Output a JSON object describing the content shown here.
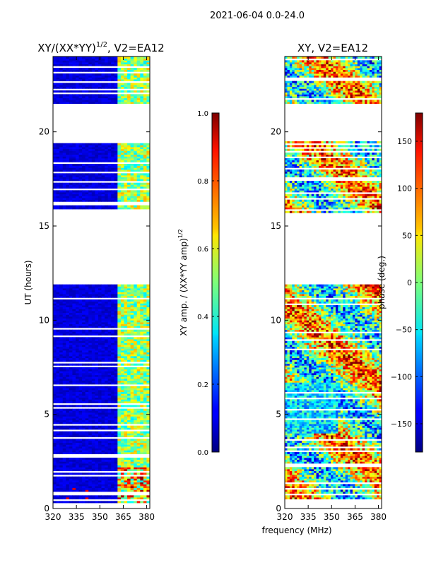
{
  "figure_title": "2021-06-04 0.0-24.0",
  "chart_data": [
    {
      "type": "heatmap",
      "title_main": "XY/(XX*YY)",
      "title_sup": "1/2",
      "title_suffix": ", V2=EA12",
      "xlabel": "",
      "ylabel": "UT (hours)",
      "xlim": [
        320,
        382
      ],
      "ylim": [
        0,
        24
      ],
      "xticks": [
        320,
        335,
        350,
        365,
        380
      ],
      "yticks": [
        0,
        5,
        10,
        15,
        20
      ],
      "data_bands_hours": [
        [
          0.3,
          12.0
        ],
        [
          15.7,
          19.5
        ],
        [
          21.5,
          24.0
        ]
      ],
      "colorbar": {
        "label_main": "XY amp. / (XX*YY amp)",
        "label_sup": "1/2",
        "range": [
          0.0,
          1.0
        ],
        "ticks": [
          "0.0",
          "0.2",
          "0.4",
          "0.6",
          "0.8",
          "1.0"
        ]
      }
    },
    {
      "type": "heatmap",
      "title_main": "XY, V2=EA12",
      "xlabel": "frequency (MHz)",
      "ylabel": "",
      "xlim": [
        320,
        382
      ],
      "ylim": [
        0,
        24
      ],
      "xticks": [
        320,
        335,
        350,
        365,
        380
      ],
      "yticks": [
        0,
        5,
        10,
        15,
        20
      ],
      "data_bands_hours": [
        [
          0.3,
          12.0
        ],
        [
          15.7,
          19.5
        ],
        [
          21.5,
          24.0
        ]
      ],
      "colorbar": {
        "label_main": "phase (deg.)",
        "range": [
          -180,
          180
        ],
        "ticks": [
          "−150",
          "−100",
          "−50",
          "0",
          "50",
          "100",
          "150"
        ]
      }
    }
  ]
}
